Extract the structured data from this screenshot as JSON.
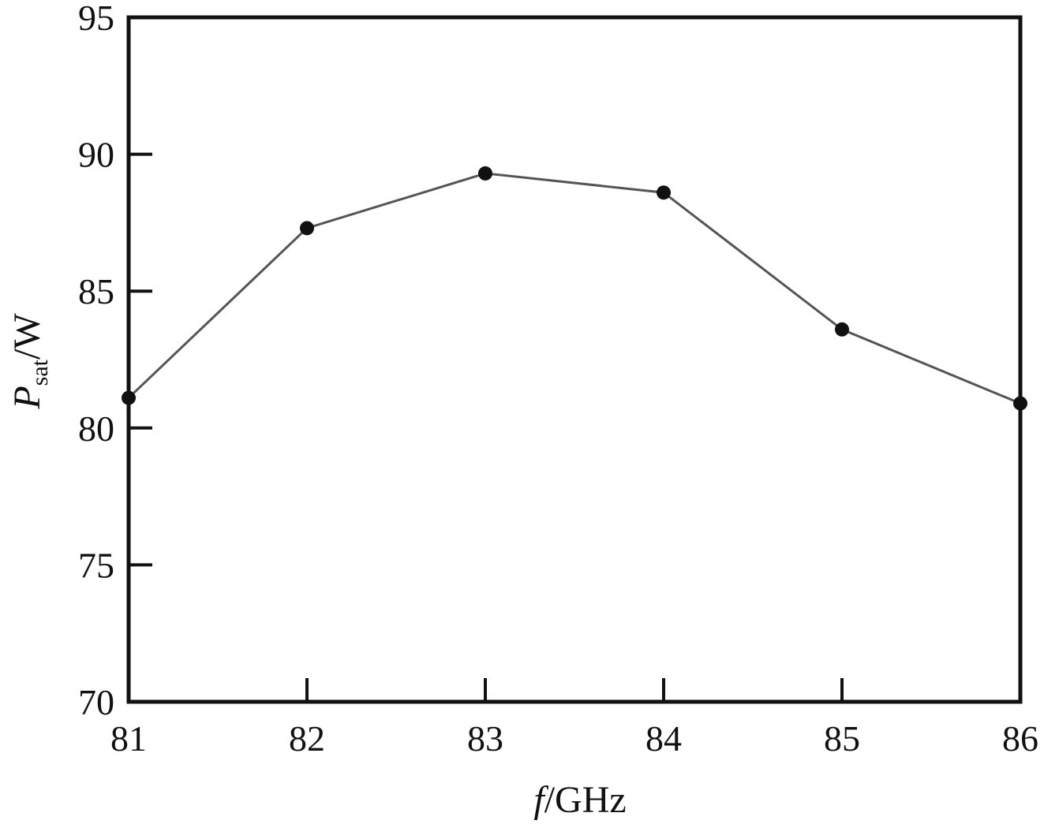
{
  "chart_data": {
    "type": "line",
    "x": [
      81,
      82,
      83,
      84,
      85,
      86
    ],
    "series": [
      {
        "values": [
          81.1,
          87.3,
          89.3,
          88.6,
          83.6,
          80.9
        ]
      }
    ],
    "xlabel": {
      "var": "f",
      "unit": "/GHz"
    },
    "ylabel": {
      "var": "P",
      "sub": "sat",
      "unit": "/W"
    },
    "xlim": [
      81,
      86
    ],
    "ylim": [
      70,
      95
    ],
    "xticks": [
      81,
      82,
      83,
      84,
      85,
      86
    ],
    "yticks": [
      70,
      75,
      80,
      85,
      90,
      95
    ],
    "grid": false,
    "markers": true,
    "colors": {
      "line": "#555555",
      "marker": "#111111",
      "frame": "#111111"
    }
  }
}
